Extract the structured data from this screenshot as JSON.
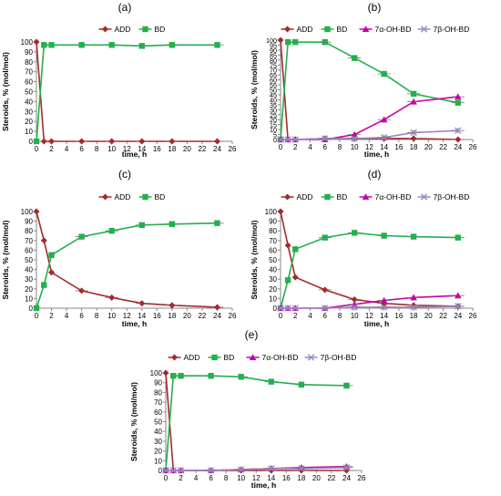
{
  "colors": {
    "ADD": "#a52a2a",
    "BD": "#22b14c",
    "7a": "#c800a6",
    "7b": "#9b87c6"
  },
  "chart_data": [
    {
      "type": "line",
      "title": "(a)",
      "xlabel": "time, h",
      "ylabel": "Steroids, % (mol/mol)",
      "xlim": [
        0,
        26
      ],
      "ylim": [
        0,
        100
      ],
      "xticks": [
        0,
        2,
        4,
        6,
        8,
        10,
        12,
        14,
        16,
        18,
        20,
        22,
        24,
        26
      ],
      "yticks": [
        0,
        10,
        20,
        30,
        40,
        50,
        60,
        70,
        80,
        90,
        100
      ],
      "grid": false,
      "legend": "top",
      "series": [
        {
          "name": "ADD",
          "color": "#a52a2a",
          "marker": "diamond",
          "x": [
            0,
            1,
            2,
            6,
            10,
            14,
            18,
            24
          ],
          "y": [
            100,
            0,
            0,
            0,
            0,
            0,
            0,
            0
          ]
        },
        {
          "name": "BD",
          "color": "#22b14c",
          "marker": "square",
          "x": [
            0,
            1,
            2,
            6,
            10,
            14,
            18,
            24
          ],
          "y": [
            0,
            97,
            97,
            97,
            97,
            96,
            97,
            97
          ]
        }
      ]
    },
    {
      "type": "line",
      "title": "(b)",
      "xlabel": "time, h",
      "ylabel": "Steroids, % (mol/mol)",
      "xlim": [
        0,
        26
      ],
      "ylim": [
        0,
        100
      ],
      "xticks": [
        0,
        2,
        4,
        6,
        8,
        10,
        12,
        14,
        16,
        18,
        20,
        22,
        24,
        26
      ],
      "yticks": [
        0,
        5,
        10,
        15,
        20,
        25,
        30,
        35,
        40,
        45,
        50,
        55,
        60,
        65,
        70,
        75,
        80,
        85,
        90,
        95,
        100
      ],
      "grid": false,
      "legend": "top",
      "series": [
        {
          "name": "ADD",
          "color": "#a52a2a",
          "marker": "diamond",
          "x": [
            0,
            1,
            2,
            6,
            10,
            14,
            18,
            24
          ],
          "y": [
            100,
            0,
            0,
            1,
            1,
            1,
            1,
            0
          ]
        },
        {
          "name": "BD",
          "color": "#22b14c",
          "marker": "square",
          "x": [
            0,
            1,
            2,
            6,
            10,
            14,
            18,
            24
          ],
          "y": [
            0,
            98,
            98,
            98,
            82,
            66,
            46,
            37
          ]
        },
        {
          "name": "7α-OH-BD",
          "color": "#c800a6",
          "marker": "triangle",
          "x": [
            0,
            1,
            2,
            6,
            10,
            14,
            18,
            24
          ],
          "y": [
            0,
            0,
            0,
            0,
            5,
            20,
            38,
            43
          ]
        },
        {
          "name": "7β-OH-BD",
          "color": "#9b87c6",
          "marker": "x",
          "x": [
            0,
            1,
            2,
            6,
            10,
            14,
            18,
            24
          ],
          "y": [
            0,
            0,
            0,
            1,
            1,
            2,
            7,
            9
          ]
        }
      ]
    },
    {
      "type": "line",
      "title": "(c)",
      "xlabel": "time, h",
      "ylabel": "Steroids, % (mol/mol)",
      "xlim": [
        0,
        26
      ],
      "ylim": [
        0,
        100
      ],
      "xticks": [
        0,
        2,
        4,
        6,
        8,
        10,
        12,
        14,
        16,
        18,
        20,
        22,
        24,
        26
      ],
      "yticks": [
        0,
        10,
        20,
        30,
        40,
        50,
        60,
        70,
        80,
        90,
        100
      ],
      "grid": false,
      "legend": "top",
      "series": [
        {
          "name": "ADD",
          "color": "#a52a2a",
          "marker": "diamond",
          "x": [
            0,
            1,
            2,
            6,
            10,
            14,
            18,
            24
          ],
          "y": [
            100,
            70,
            37,
            18,
            11,
            5,
            3,
            1
          ]
        },
        {
          "name": "BD",
          "color": "#22b14c",
          "marker": "square",
          "x": [
            0,
            1,
            2,
            6,
            10,
            14,
            18,
            24
          ],
          "y": [
            0,
            24,
            55,
            74,
            80,
            86,
            87,
            88
          ]
        }
      ]
    },
    {
      "type": "line",
      "title": "(d)",
      "xlabel": "time, h",
      "ylabel": "Steroids, % (mol/mol)",
      "xlim": [
        0,
        26
      ],
      "ylim": [
        0,
        100
      ],
      "xticks": [
        0,
        2,
        4,
        6,
        8,
        10,
        12,
        14,
        16,
        18,
        20,
        22,
        24,
        26
      ],
      "yticks": [
        0,
        10,
        20,
        30,
        40,
        50,
        60,
        70,
        80,
        90,
        100
      ],
      "grid": false,
      "legend": "top",
      "series": [
        {
          "name": "ADD",
          "color": "#a52a2a",
          "marker": "diamond",
          "x": [
            0,
            1,
            2,
            6,
            10,
            14,
            18,
            24
          ],
          "y": [
            100,
            65,
            32,
            19,
            9,
            5,
            3,
            2
          ]
        },
        {
          "name": "BD",
          "color": "#22b14c",
          "marker": "square",
          "x": [
            0,
            1,
            2,
            6,
            10,
            14,
            18,
            24
          ],
          "y": [
            0,
            29,
            61,
            73,
            78,
            75,
            74,
            73
          ]
        },
        {
          "name": "7α-OH-BD",
          "color": "#c800a6",
          "marker": "triangle",
          "x": [
            0,
            1,
            2,
            6,
            10,
            14,
            18,
            24
          ],
          "y": [
            0,
            0,
            0,
            0,
            4,
            8,
            11,
            13
          ]
        },
        {
          "name": "7β-OH-BD",
          "color": "#9b87c6",
          "marker": "x",
          "x": [
            0,
            1,
            2,
            6,
            10,
            14,
            18,
            24
          ],
          "y": [
            0,
            0,
            0,
            0,
            1,
            1,
            1,
            2
          ]
        }
      ]
    },
    {
      "type": "line",
      "title": "(e)",
      "xlabel": "time, h",
      "ylabel": "Steroids, % (mol/mol)",
      "xlim": [
        0,
        26
      ],
      "ylim": [
        0,
        100
      ],
      "xticks": [
        0,
        2,
        4,
        6,
        8,
        10,
        12,
        14,
        16,
        18,
        20,
        22,
        24,
        26
      ],
      "yticks": [
        0,
        10,
        20,
        30,
        40,
        50,
        60,
        70,
        80,
        90,
        100
      ],
      "grid": false,
      "legend": "top",
      "series": [
        {
          "name": "ADD",
          "color": "#a52a2a",
          "marker": "diamond",
          "x": [
            0,
            1,
            2,
            6,
            10,
            14,
            18,
            24
          ],
          "y": [
            100,
            0,
            0,
            0,
            0,
            0,
            0,
            0
          ]
        },
        {
          "name": "BD",
          "color": "#22b14c",
          "marker": "square",
          "x": [
            0,
            1,
            2,
            6,
            10,
            14,
            18,
            24
          ],
          "y": [
            0,
            97,
            97,
            97,
            96,
            91,
            88,
            87
          ]
        },
        {
          "name": "7α-OH-BD",
          "color": "#c800a6",
          "marker": "triangle",
          "x": [
            0,
            1,
            2,
            6,
            10,
            14,
            18,
            24
          ],
          "y": [
            0,
            0,
            0,
            0,
            1,
            2,
            3,
            4
          ]
        },
        {
          "name": "7β-OH-BD",
          "color": "#9b87c6",
          "marker": "x",
          "x": [
            0,
            1,
            2,
            6,
            10,
            14,
            18,
            24
          ],
          "y": [
            0,
            0,
            0,
            0,
            1,
            2,
            2,
            3
          ]
        }
      ]
    }
  ]
}
